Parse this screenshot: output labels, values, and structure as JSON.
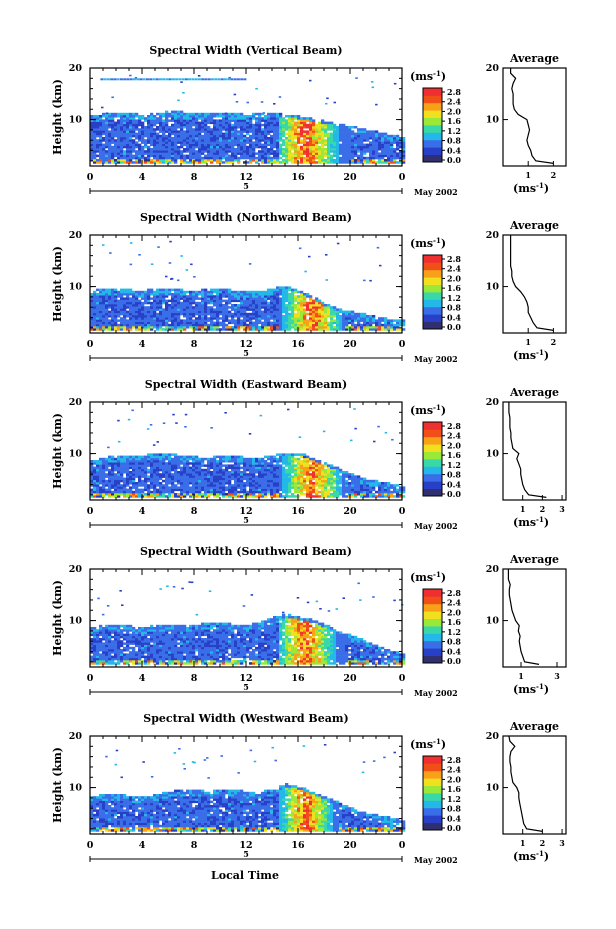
{
  "figure": {
    "xlabel": "Local Time"
  },
  "colorbar": {
    "unit_label": "(ms",
    "unit_exp": "-1",
    "unit_close": ")",
    "ticks": [
      "0.0",
      "0.4",
      "0.8",
      "1.2",
      "1.6",
      "2.0",
      "2.4",
      "2.8"
    ],
    "colors": [
      "#303070",
      "#2840c8",
      "#3a6ee8",
      "#24b8e8",
      "#38d8a8",
      "#9ae838",
      "#f0e020",
      "#f8a018",
      "#f05018",
      "#f03030"
    ]
  },
  "chart_data": [
    {
      "type": "heatmap",
      "title": "Spectral Width (Vertical Beam)",
      "ylabel": "Height (km)",
      "xticks": [
        "0",
        "4",
        "8",
        "12",
        "16",
        "20",
        "0"
      ],
      "yticks": [
        "20",
        "10"
      ],
      "xlim": [
        0,
        24
      ],
      "ylim": [
        1,
        20
      ],
      "date_label": "5",
      "date_note": "May 2002",
      "clim": [
        0.0,
        2.8
      ],
      "cloud": {
        "top_km": [
          10.5,
          11.0,
          11.2,
          11.0,
          10.8,
          11.0,
          11.5,
          11.3,
          11.0,
          11.0,
          11.2,
          11.0,
          10.8,
          11.0,
          11.0,
          10.8,
          10.5,
          10.0,
          9.5,
          9.0,
          8.5,
          8.0,
          7.5,
          7.0,
          6.5
        ],
        "base_km": 1.5,
        "turb_start_h": 14.5,
        "turb_end_h": 20.0,
        "turb_peak_h": 16.5,
        "upper_layer_km": 18.0
      },
      "avg": {
        "title": "Average",
        "xlabel": "(ms",
        "xlabel_exp": "-1",
        "xlabel_close": ")",
        "xticks": [
          "1",
          "2"
        ],
        "xlim": [
          0,
          2.5
        ],
        "yticks": [
          "20",
          "10"
        ],
        "profile_h_km": [
          1.5,
          2,
          3,
          4,
          5,
          6,
          7,
          8,
          9,
          10,
          11,
          12,
          13,
          14,
          15,
          16,
          17,
          18,
          19,
          20
        ],
        "profile_v": [
          2.0,
          1.3,
          1.15,
          1.1,
          1.0,
          0.95,
          1.0,
          1.05,
          1.0,
          0.95,
          0.6,
          0.45,
          0.4,
          0.4,
          0.4,
          0.35,
          0.4,
          0.5,
          0.3,
          0.3
        ]
      }
    },
    {
      "type": "heatmap",
      "title": "Spectral Width (Northward Beam)",
      "ylabel": "Height (km)",
      "xticks": [
        "0",
        "4",
        "8",
        "12",
        "16",
        "20",
        "0"
      ],
      "yticks": [
        "20",
        "10"
      ],
      "xlim": [
        0,
        24
      ],
      "ylim": [
        1,
        20
      ],
      "date_label": "5",
      "date_note": "May 2002",
      "clim": [
        0.0,
        2.8
      ],
      "cloud": {
        "top_km": [
          9.0,
          9.5,
          9.5,
          9.2,
          9.0,
          9.5,
          9.5,
          9.2,
          9.0,
          9.5,
          9.5,
          9.0,
          8.8,
          9.0,
          9.5,
          10.0,
          9.0,
          8.0,
          6.5,
          5.5,
          5.0,
          4.5,
          4.0,
          3.5,
          3.5
        ],
        "base_km": 1.5,
        "turb_start_h": 14.5,
        "turb_end_h": 19.5,
        "turb_peak_h": 17.0,
        "upper_layer_km": 0
      },
      "avg": {
        "title": "Average",
        "xlabel": "(ms",
        "xlabel_exp": "-1",
        "xlabel_close": ")",
        "xticks": [
          "1",
          "2"
        ],
        "xlim": [
          0,
          2.5
        ],
        "yticks": [
          "20",
          "10"
        ],
        "profile_h_km": [
          1.5,
          2,
          3,
          4,
          5,
          6,
          7,
          8,
          9,
          10,
          11,
          12,
          13,
          14,
          15,
          16,
          17,
          18,
          19,
          20
        ],
        "profile_v": [
          2.0,
          1.35,
          1.2,
          1.1,
          1.0,
          1.0,
          0.95,
          0.85,
          0.7,
          0.5,
          0.4,
          0.35,
          0.35,
          0.3,
          0.3,
          0.3,
          0.3,
          0.3,
          0.3,
          0.3
        ]
      }
    },
    {
      "type": "heatmap",
      "title": "Spectral Width (Eastward Beam)",
      "ylabel": "Height (km)",
      "xticks": [
        "0",
        "4",
        "8",
        "12",
        "16",
        "20",
        "0"
      ],
      "yticks": [
        "20",
        "10"
      ],
      "xlim": [
        0,
        24
      ],
      "ylim": [
        1,
        20
      ],
      "date_label": "5",
      "date_note": "May 2002",
      "clim": [
        0.0,
        2.8
      ],
      "cloud": {
        "top_km": [
          8.5,
          9.0,
          9.5,
          9.2,
          9.5,
          10.0,
          9.8,
          9.5,
          9.2,
          9.0,
          9.5,
          9.5,
          9.0,
          9.0,
          9.5,
          10.0,
          10.0,
          9.0,
          8.0,
          7.0,
          6.0,
          5.0,
          4.5,
          4.0,
          3.5
        ],
        "base_km": 1.5,
        "turb_start_h": 14.5,
        "turb_end_h": 19.5,
        "turb_peak_h": 17.0,
        "upper_layer_km": 0
      },
      "avg": {
        "title": "Average",
        "xlabel": "(ms",
        "xlabel_exp": "-1",
        "xlabel_close": ")",
        "xticks": [
          "1",
          "2",
          "3"
        ],
        "xlim": [
          0,
          3.2
        ],
        "yticks": [
          "20",
          "10"
        ],
        "profile_h_km": [
          1.5,
          2,
          3,
          4,
          5,
          6,
          7,
          8,
          9,
          10,
          11,
          12,
          13,
          14,
          15,
          16,
          17,
          18,
          19,
          20
        ],
        "profile_v": [
          2.2,
          1.3,
          1.1,
          1.0,
          0.95,
          0.9,
          0.9,
          0.8,
          0.7,
          0.8,
          0.5,
          0.45,
          0.4,
          0.4,
          0.35,
          0.35,
          0.35,
          0.3,
          0.3,
          0.3
        ]
      }
    },
    {
      "type": "heatmap",
      "title": "Spectral Width (Southward Beam)",
      "ylabel": "Height (km)",
      "xticks": [
        "0",
        "4",
        "8",
        "12",
        "16",
        "20",
        "0"
      ],
      "yticks": [
        "20",
        "10"
      ],
      "xlim": [
        0,
        24
      ],
      "ylim": [
        1,
        20
      ],
      "date_label": "5",
      "date_note": "May 2002",
      "clim": [
        0.0,
        2.8
      ],
      "cloud": {
        "top_km": [
          8.5,
          9.0,
          9.0,
          8.8,
          8.5,
          9.0,
          9.0,
          8.8,
          9.0,
          9.5,
          9.5,
          9.0,
          9.0,
          9.5,
          10.5,
          11.0,
          10.5,
          10.0,
          9.0,
          8.0,
          7.0,
          6.0,
          5.0,
          4.0,
          3.5
        ],
        "base_km": 1.5,
        "turb_start_h": 14.5,
        "turb_end_h": 19.5,
        "turb_peak_h": 16.5,
        "upper_layer_km": 0
      },
      "avg": {
        "title": "Average",
        "xlabel": "(ms",
        "xlabel_exp": "-1",
        "xlabel_close": ")",
        "xticks": [
          "1",
          "3"
        ],
        "xlim": [
          0,
          3.5
        ],
        "yticks": [
          "20",
          "10"
        ],
        "profile_h_km": [
          1.5,
          2,
          3,
          4,
          5,
          6,
          7,
          8,
          9,
          10,
          11,
          12,
          13,
          14,
          15,
          16,
          17,
          18,
          19,
          20
        ],
        "profile_v": [
          2.0,
          1.2,
          1.1,
          1.0,
          0.95,
          0.9,
          0.95,
          0.85,
          0.9,
          0.7,
          0.6,
          0.5,
          0.45,
          0.4,
          0.35,
          0.35,
          0.4,
          0.3,
          0.3,
          0.3
        ]
      }
    },
    {
      "type": "heatmap",
      "title": "Spectral Width (Westward Beam)",
      "ylabel": "Height (km)",
      "xticks": [
        "0",
        "4",
        "8",
        "12",
        "16",
        "20",
        "0"
      ],
      "yticks": [
        "20",
        "10"
      ],
      "xlim": [
        0,
        24
      ],
      "ylim": [
        1,
        20
      ],
      "date_label": "5",
      "date_note": "May 2002",
      "clim": [
        0.0,
        2.8
      ],
      "cloud": {
        "top_km": [
          8.0,
          8.5,
          8.5,
          8.2,
          8.0,
          8.5,
          9.0,
          9.5,
          9.5,
          9.0,
          9.5,
          9.5,
          9.0,
          9.0,
          9.5,
          10.5,
          10.0,
          9.0,
          8.0,
          7.0,
          6.0,
          5.0,
          4.5,
          4.0,
          3.5
        ],
        "base_km": 1.5,
        "turb_start_h": 14.5,
        "turb_end_h": 19.0,
        "turb_peak_h": 16.5,
        "upper_layer_km": 0
      },
      "avg": {
        "title": "Average",
        "xlabel": "(ms",
        "xlabel_exp": "-1",
        "xlabel_close": ")",
        "xticks": [
          "1",
          "2",
          "3"
        ],
        "xlim": [
          0,
          3.2
        ],
        "yticks": [
          "20",
          "10"
        ],
        "profile_h_km": [
          1.5,
          2,
          3,
          4,
          5,
          6,
          7,
          8,
          9,
          10,
          11,
          12,
          13,
          14,
          15,
          16,
          17,
          18,
          19,
          20
        ],
        "profile_v": [
          2.0,
          1.2,
          1.05,
          1.0,
          0.95,
          0.9,
          0.85,
          0.8,
          0.8,
          0.7,
          0.5,
          0.45,
          0.4,
          0.4,
          0.35,
          0.35,
          0.4,
          0.6,
          0.35,
          0.3
        ]
      }
    }
  ]
}
